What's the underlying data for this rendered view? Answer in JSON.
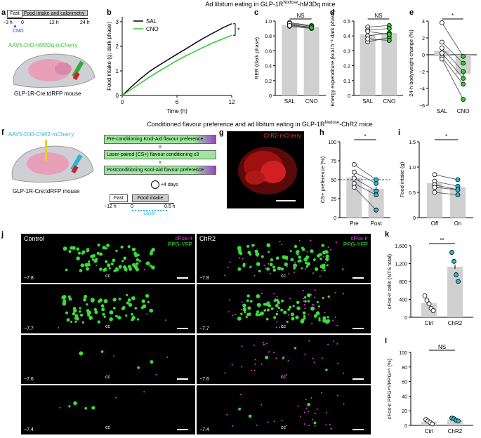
{
  "colors": {
    "green": "#2ecc2e",
    "magenta": "#e040e0",
    "cyan": "#29b6d8",
    "red": "#e02020",
    "purple": "#9b3fc8",
    "bar": "#d0d0d0"
  },
  "titles": {
    "top": "Ad libitum eating in GLP-1R",
    "top_sup": "Nodose",
    "top_end": "-hM3Dq mice",
    "mid": "Conditioned flavour preference and ad libitum eating in GLP-1R",
    "mid_sup": "Nodose",
    "mid_end": "-ChR2 mice"
  },
  "panel_a": {
    "label": "a",
    "fast": "Fast",
    "intake": "Food intake and calorimetry",
    "t0": "−3 h",
    "t1": "0",
    "t2": "12 h",
    "t3": "24 h",
    "cno": "CNO",
    "virus": "AAV5-DIO-hM3Dq-mCherry",
    "mouse": "GLP-1R-Cre:tdRFP mouse"
  },
  "panel_f": {
    "label": "f",
    "virus": "AAV5-DIO-ChR2-mCherry",
    "mouse": "GLP-1R-Cre:tdRFP mouse",
    "step1": "Pre-conditioning Kool-Aid flavour preference",
    "step2": "Laser-paired (CS+) flavour conditioning x3",
    "step3": "Postconditioning Kool-Aid flavour preference",
    "days": "+4 days",
    "fast": "Fast",
    "intake": "Food intake",
    "t0": "−12 h",
    "t1": "0",
    "t2": "0.5 h",
    "laser": "Laser"
  },
  "panel_g": {
    "label": "g",
    "tag": "ChR2-mCherry"
  },
  "panel_j": {
    "label": "j",
    "left": "Control",
    "right": "ChR2",
    "cfos": "cFos-ir",
    "ppg": "PPG-YFP",
    "cc": "cc",
    "rows": [
      "−7.8",
      "−7.7",
      "−7.6",
      "−7.4"
    ]
  },
  "chart_data": [
    {
      "panel": "b",
      "type": "line",
      "xlabel": "Time (h)",
      "ylabel": "Food intake (g; dark phase)",
      "xticks": [
        0,
        6,
        12
      ],
      "yticks": [
        0,
        1,
        2,
        3
      ],
      "xlim": [
        0,
        12
      ],
      "ylim": [
        0,
        3.2
      ],
      "significance": "*",
      "series": [
        {
          "name": "SAL",
          "x": [
            0,
            1,
            2,
            3,
            4,
            5,
            6,
            7,
            8,
            9,
            10,
            11,
            12
          ],
          "values": [
            0,
            0.35,
            0.68,
            0.98,
            1.22,
            1.45,
            1.68,
            1.9,
            2.13,
            2.35,
            2.55,
            2.75,
            2.92
          ]
        },
        {
          "name": "CNO",
          "x": [
            0,
            1,
            2,
            3,
            4,
            5,
            6,
            7,
            8,
            9,
            10,
            11,
            12
          ],
          "values": [
            0,
            0.25,
            0.5,
            0.75,
            0.98,
            1.2,
            1.42,
            1.62,
            1.8,
            1.98,
            2.15,
            2.3,
            2.45
          ]
        }
      ]
    },
    {
      "panel": "c",
      "type": "bar",
      "categories": [
        "SAL",
        "CNO"
      ],
      "ylabel": "RER (dark phase)",
      "yticks": [
        "0",
        "0.2",
        "0.4",
        "0.6",
        "0.8",
        "1.0"
      ],
      "ylim": [
        0,
        1.0
      ],
      "values": [
        0.95,
        0.92
      ],
      "significance": "NS",
      "points": [
        [
          0.98,
          0.96,
          0.95,
          0.93,
          0.97,
          0.94
        ],
        [
          0.94,
          0.91,
          0.92,
          0.9,
          0.93,
          0.91
        ]
      ]
    },
    {
      "panel": "d",
      "type": "bar",
      "categories": [
        "SAL",
        "CNO"
      ],
      "ylabel": "Energy expenditure (kcal h⁻¹ dark phase)",
      "yticks": [
        "0",
        "0.1",
        "0.2",
        "0.3",
        "0.4",
        "0.5"
      ],
      "ylim": [
        0,
        0.5
      ],
      "values": [
        0.41,
        0.42
      ],
      "significance": "NS",
      "points": [
        [
          0.46,
          0.44,
          0.4,
          0.36,
          0.43,
          0.38
        ],
        [
          0.47,
          0.45,
          0.42,
          0.39,
          0.41,
          0.37
        ]
      ]
    },
    {
      "panel": "e",
      "type": "bar",
      "categories": [
        "SAL",
        "CNO"
      ],
      "ylabel": "24-h bodyweight change (%)",
      "yticks": [
        "−6",
        "−4",
        "−2",
        "0",
        "2",
        "4"
      ],
      "ylim": [
        -6,
        4
      ],
      "values": [
        0.5,
        -2.3
      ],
      "significance": "*",
      "points": [
        [
          3.8,
          1.5,
          0.8,
          0.2,
          -0.3,
          -0.5
        ],
        [
          -0.2,
          -1.0,
          -2.0,
          -2.8,
          -3.5,
          -5.3
        ]
      ]
    },
    {
      "panel": "h",
      "type": "bar",
      "categories": [
        "Pre",
        "Post"
      ],
      "ylabel": "CS+ preference (%)",
      "yticks": [
        "0",
        "25",
        "50",
        "75",
        "100"
      ],
      "ylim": [
        0,
        100
      ],
      "values": [
        53,
        38
      ],
      "chance": 50,
      "significance": "*",
      "points": [
        [
          70,
          60,
          52,
          45,
          40
        ],
        [
          50,
          45,
          35,
          30,
          10
        ]
      ]
    },
    {
      "panel": "i",
      "type": "bar",
      "categories": [
        "Off",
        "On"
      ],
      "ylabel": "Food intake (g)",
      "yticks": [
        "0",
        "0.5",
        "1.0",
        "1.5"
      ],
      "ylim": [
        0,
        1.5
      ],
      "values": [
        0.68,
        0.6
      ],
      "significance": "*",
      "points": [
        [
          0.85,
          0.72,
          0.65,
          0.6,
          0.5
        ],
        [
          0.75,
          0.62,
          0.55,
          0.55,
          0.45
        ]
      ]
    },
    {
      "panel": "k",
      "type": "bar",
      "categories": [
        "Ctrl",
        "ChR2"
      ],
      "ylabel": "cFos-ir cells (NTS total)",
      "yticks": [
        "0",
        "400",
        "800",
        "1,200",
        "1,600"
      ],
      "ylim": [
        0,
        1600
      ],
      "values": [
        320,
        1130
      ],
      "significance": "**",
      "points": [
        [
          480,
          380,
          300,
          200,
          150
        ],
        [
          1450,
          1250,
          950,
          800
        ]
      ]
    },
    {
      "panel": "l",
      "type": "bar",
      "categories": [
        "Ctrl",
        "ChR2"
      ],
      "ylabel": "cFos-ir PPGⁿᵗˢ/PPGⁿᵗˢ (%)",
      "yticks": [
        "0",
        "20",
        "40",
        "60",
        "80",
        "100"
      ],
      "ylim": [
        0,
        100
      ],
      "values": [
        5,
        8
      ],
      "significance": "NS",
      "points": [
        [
          8,
          6,
          4,
          2
        ],
        [
          10,
          9,
          7,
          6
        ]
      ]
    }
  ]
}
